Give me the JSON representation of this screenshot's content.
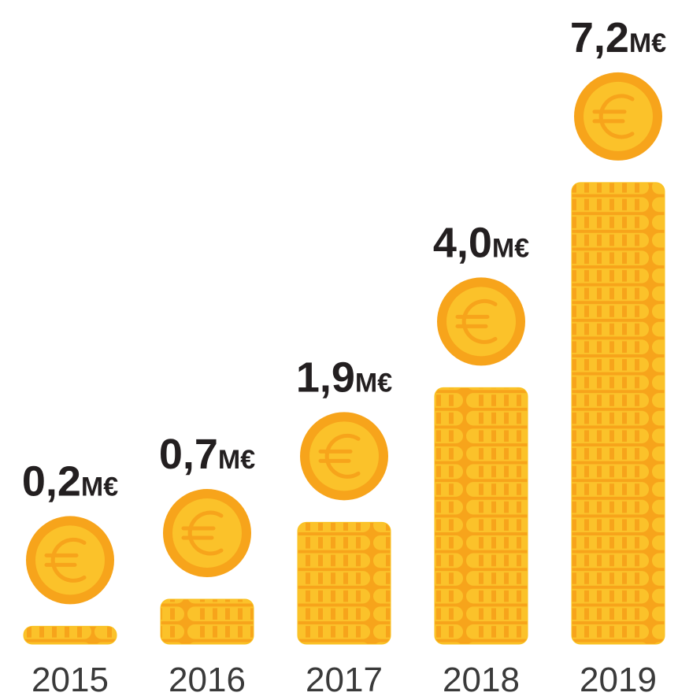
{
  "chart_data": {
    "type": "bar",
    "categories": [
      "2015",
      "2016",
      "2017",
      "2018",
      "2019"
    ],
    "values": [
      0.2,
      0.7,
      1.9,
      4.0,
      7.2
    ],
    "value_labels": [
      "0,2M€",
      "0,7M€",
      "1,9M€",
      "4,0M€",
      "7,2M€"
    ],
    "color": "#f9c21f"
  }
}
